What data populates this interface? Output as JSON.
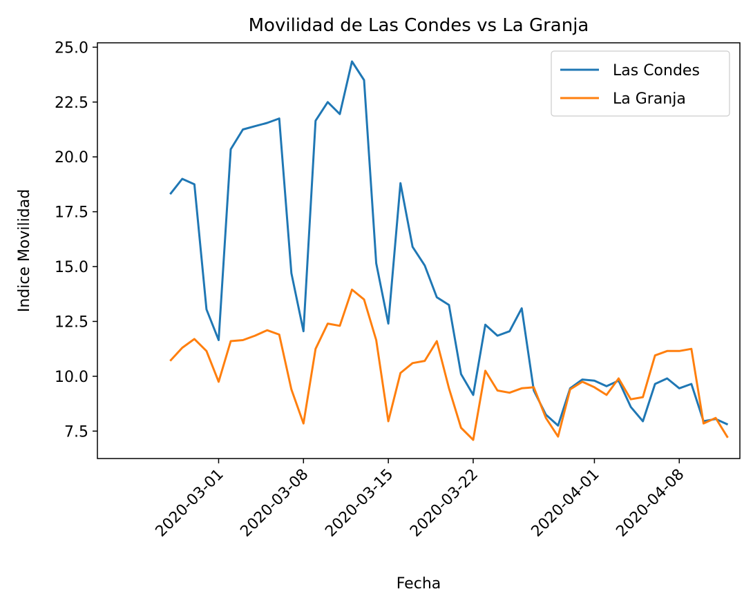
{
  "chart_data": {
    "type": "line",
    "title": "Movilidad de Las Condes vs La Granja",
    "xlabel": "Fecha",
    "ylabel": "Indice Movilidad",
    "ylim": [
      6.25,
      25.2
    ],
    "xlim": [
      "2020-02-20",
      "2020-04-13"
    ],
    "x_ticks": [
      "2020-03-01",
      "2020-03-08",
      "2020-03-15",
      "2020-03-22",
      "2020-04-01",
      "2020-04-08"
    ],
    "y_ticks": [
      "7.5",
      "10.0",
      "12.5",
      "15.0",
      "17.5",
      "20.0",
      "22.5",
      "25.0"
    ],
    "grid": false,
    "legend": "top-right",
    "x": [
      "2020-02-26",
      "2020-02-27",
      "2020-02-28",
      "2020-02-29",
      "2020-03-01",
      "2020-03-02",
      "2020-03-03",
      "2020-03-04",
      "2020-03-05",
      "2020-03-06",
      "2020-03-07",
      "2020-03-08",
      "2020-03-09",
      "2020-03-10",
      "2020-03-11",
      "2020-03-12",
      "2020-03-13",
      "2020-03-14",
      "2020-03-15",
      "2020-03-16",
      "2020-03-17",
      "2020-03-18",
      "2020-03-19",
      "2020-03-20",
      "2020-03-21",
      "2020-03-22",
      "2020-03-23",
      "2020-03-24",
      "2020-03-25",
      "2020-03-26",
      "2020-03-27",
      "2020-03-28",
      "2020-03-29",
      "2020-03-30",
      "2020-03-31",
      "2020-04-01",
      "2020-04-02",
      "2020-04-03",
      "2020-04-04",
      "2020-04-05",
      "2020-04-06",
      "2020-04-07",
      "2020-04-08",
      "2020-04-09",
      "2020-04-10",
      "2020-04-11",
      "2020-04-12"
    ],
    "series": [
      {
        "name": "Las Condes",
        "color": "#1f77b4",
        "values": [
          18.3,
          19.0,
          18.75,
          13.05,
          11.65,
          20.35,
          21.25,
          21.4,
          21.55,
          21.75,
          14.7,
          12.05,
          21.65,
          22.5,
          21.95,
          24.35,
          23.5,
          15.15,
          12.4,
          18.8,
          15.9,
          15.05,
          13.6,
          13.25,
          10.1,
          9.15,
          12.35,
          11.85,
          12.05,
          13.1,
          9.35,
          8.25,
          7.75,
          9.45,
          9.85,
          9.8,
          9.55,
          9.8,
          8.6,
          7.95,
          9.65,
          9.9,
          9.45,
          9.65,
          7.95,
          8.05,
          7.8
        ]
      },
      {
        "name": "La Granja",
        "color": "#ff7f0e",
        "values": [
          10.7,
          11.3,
          11.7,
          11.15,
          9.75,
          11.6,
          11.65,
          11.85,
          12.1,
          11.9,
          9.4,
          7.85,
          11.25,
          12.4,
          12.3,
          13.95,
          13.5,
          11.65,
          7.95,
          10.15,
          10.6,
          10.7,
          11.6,
          9.45,
          7.65,
          7.1,
          10.25,
          9.35,
          9.25,
          9.45,
          9.5,
          8.1,
          7.25,
          9.4,
          9.75,
          9.5,
          9.15,
          9.9,
          8.95,
          9.05,
          10.95,
          11.15,
          11.15,
          11.25,
          7.85,
          8.1,
          7.2
        ]
      }
    ]
  }
}
